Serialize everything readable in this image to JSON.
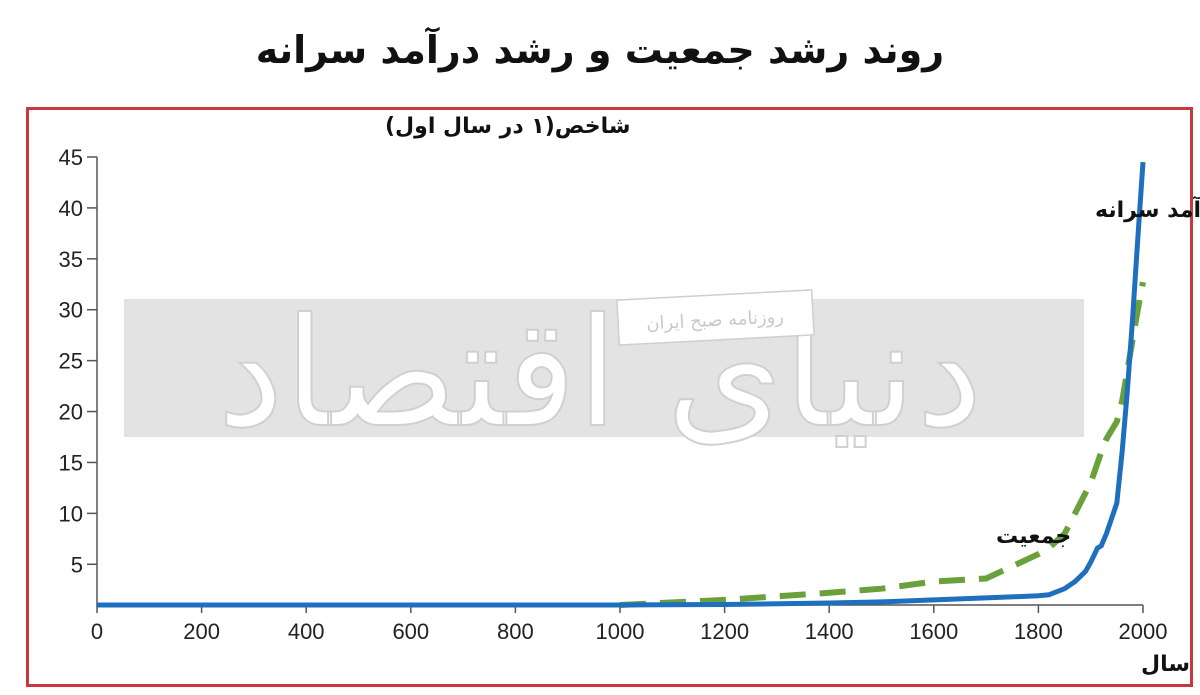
{
  "chart_title": "روند رشد جمعیت و رشد درآمد سرانه",
  "watermark": {
    "logo_text": "دنیای اقتصاد",
    "subtitle": "روزنامه صبح ایران"
  },
  "colors": {
    "frame": "#c8383c",
    "income": "#1f6fbf",
    "population": "#6aa13a",
    "watermark_band": "#d9d9d9"
  },
  "chart_data": {
    "type": "line",
    "title": "روند رشد جمعیت و رشد درآمد سرانه",
    "ylabel": "شاخص(۱ در سال اول)",
    "xlabel": "سال",
    "xlim": [
      0,
      2000
    ],
    "ylim": [
      1,
      45
    ],
    "x_ticks": [
      0,
      200,
      400,
      600,
      800,
      1000,
      1200,
      1400,
      1600,
      1800,
      2000
    ],
    "y_ticks": [
      5,
      10,
      15,
      20,
      25,
      30,
      35,
      40,
      45
    ],
    "grid": false,
    "legend": "inline labels near lines",
    "series": [
      {
        "name": "درآمد سرانه",
        "style": "solid",
        "color": "#1f6fbf",
        "x": [
          0,
          200,
          400,
          600,
          800,
          1000,
          1200,
          1400,
          1500,
          1600,
          1700,
          1800,
          1820,
          1850,
          1870,
          1890,
          1900,
          1913,
          1920,
          1930,
          1950,
          1960,
          1970,
          1980,
          1990,
          2000
        ],
        "y": [
          1,
          1,
          1,
          1,
          1,
          1,
          1.05,
          1.2,
          1.3,
          1.5,
          1.7,
          1.9,
          2.0,
          2.6,
          3.3,
          4.3,
          5.2,
          6.6,
          6.8,
          8.0,
          11.0,
          16.0,
          22.0,
          29.0,
          37.0,
          44.5
        ]
      },
      {
        "name": "جمعیت",
        "style": "dashed",
        "color": "#6aa13a",
        "x": [
          1000,
          1200,
          1400,
          1500,
          1600,
          1700,
          1800,
          1820,
          1850,
          1870,
          1900,
          1920,
          1930,
          1950,
          1960,
          1970,
          1980,
          1990,
          2000
        ],
        "y": [
          1.0,
          1.5,
          2.2,
          2.6,
          3.3,
          3.6,
          6.0,
          6.6,
          8.0,
          10.0,
          13.0,
          16.0,
          17.3,
          19.0,
          21.0,
          24.0,
          27.0,
          30.0,
          32.7
        ]
      }
    ]
  }
}
